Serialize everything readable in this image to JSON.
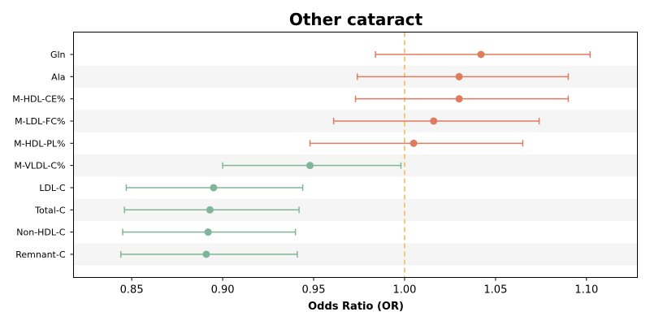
{
  "chart_data": {
    "type": "scatter",
    "title": "Other cataract",
    "xlabel": "Odds Ratio (OR)",
    "ylabel": "",
    "xlim": [
      0.818,
      1.128
    ],
    "xticks": [
      "0.85",
      "0.90",
      "0.95",
      "1.00",
      "1.05",
      "1.10"
    ],
    "xtick_values": [
      0.85,
      0.9,
      0.95,
      1.0,
      1.05,
      1.1
    ],
    "reference_line": 1.0,
    "grid": false,
    "legend": "none",
    "colors": {
      "positive": "#e07b5f",
      "negative": "#7fb69b",
      "reference": "#f5c26b",
      "band": "#f5f5f5"
    },
    "rows": [
      {
        "label": "Gln",
        "or": 1.042,
        "lower": 0.984,
        "upper": 1.102
      },
      {
        "label": "Ala",
        "or": 1.03,
        "lower": 0.974,
        "upper": 1.09
      },
      {
        "label": "M-HDL-CE%",
        "or": 1.03,
        "lower": 0.973,
        "upper": 1.09
      },
      {
        "label": "M-LDL-FC%",
        "or": 1.016,
        "lower": 0.961,
        "upper": 1.074
      },
      {
        "label": "M-HDL-PL%",
        "or": 1.005,
        "lower": 0.948,
        "upper": 1.065
      },
      {
        "label": "M-VLDL-C%",
        "or": 0.948,
        "lower": 0.9,
        "upper": 0.998
      },
      {
        "label": "LDL-C",
        "or": 0.895,
        "lower": 0.847,
        "upper": 0.944
      },
      {
        "label": "Total-C",
        "or": 0.893,
        "lower": 0.846,
        "upper": 0.942
      },
      {
        "label": "Non-HDL-C",
        "or": 0.892,
        "lower": 0.845,
        "upper": 0.94
      },
      {
        "label": "Remnant-C",
        "or": 0.891,
        "lower": 0.844,
        "upper": 0.941
      }
    ]
  }
}
